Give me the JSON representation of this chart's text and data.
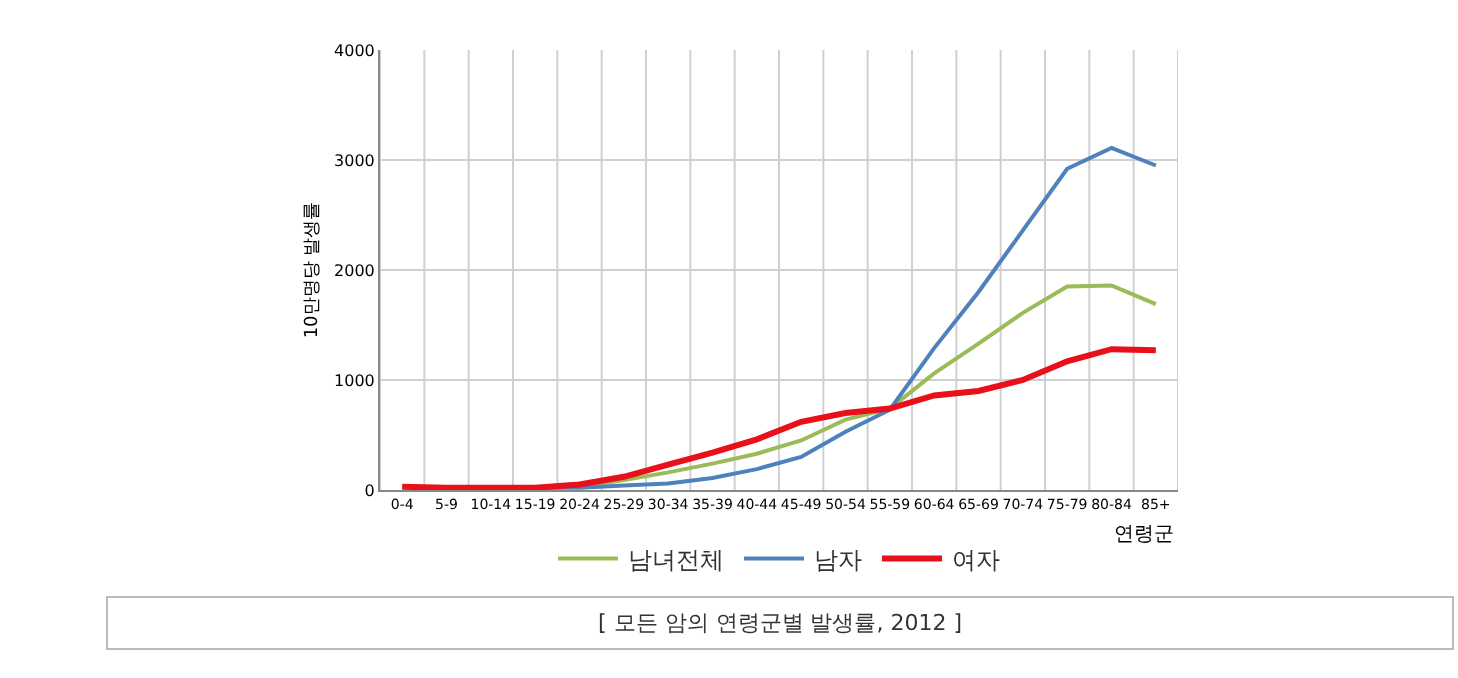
{
  "chart_data": {
    "type": "line",
    "ylabel": "10만명당 발생률",
    "xlabel": "연령군",
    "categories": [
      "0-4",
      "5-9",
      "10-14",
      "15-19",
      "20-24",
      "25-29",
      "30-34",
      "35-39",
      "40-44",
      "45-49",
      "50-54",
      "55-59",
      "60-64",
      "65-69",
      "70-74",
      "75-79",
      "80-84",
      "85+"
    ],
    "series": [
      {
        "name": "남녀전체",
        "color": "#9bbb59",
        "values": [
          null,
          null,
          null,
          20,
          30,
          90,
          160,
          240,
          330,
          450,
          640,
          740,
          1060,
          1330,
          1610,
          1850,
          1860,
          1690
        ]
      },
      {
        "name": "남자",
        "color": "#4f81bd",
        "values": [
          null,
          null,
          10,
          20,
          20,
          40,
          60,
          110,
          190,
          300,
          530,
          730,
          1290,
          1800,
          2360,
          2920,
          3110,
          2950
        ]
      },
      {
        "name": "여자",
        "color": "#e8101a",
        "values": [
          30,
          20,
          20,
          20,
          50,
          120,
          230,
          340,
          460,
          620,
          700,
          740,
          860,
          900,
          1000,
          1170,
          1280,
          1270
        ]
      }
    ],
    "ylim": [
      0,
      4000
    ],
    "yticks": [
      0,
      1000,
      2000,
      3000,
      4000
    ],
    "grid": true,
    "legend": "bottom",
    "marker": "none",
    "line_style": "solid",
    "annotations": [
      "[ 모든 암의 연령군별 발생률, 2012 ]"
    ]
  }
}
